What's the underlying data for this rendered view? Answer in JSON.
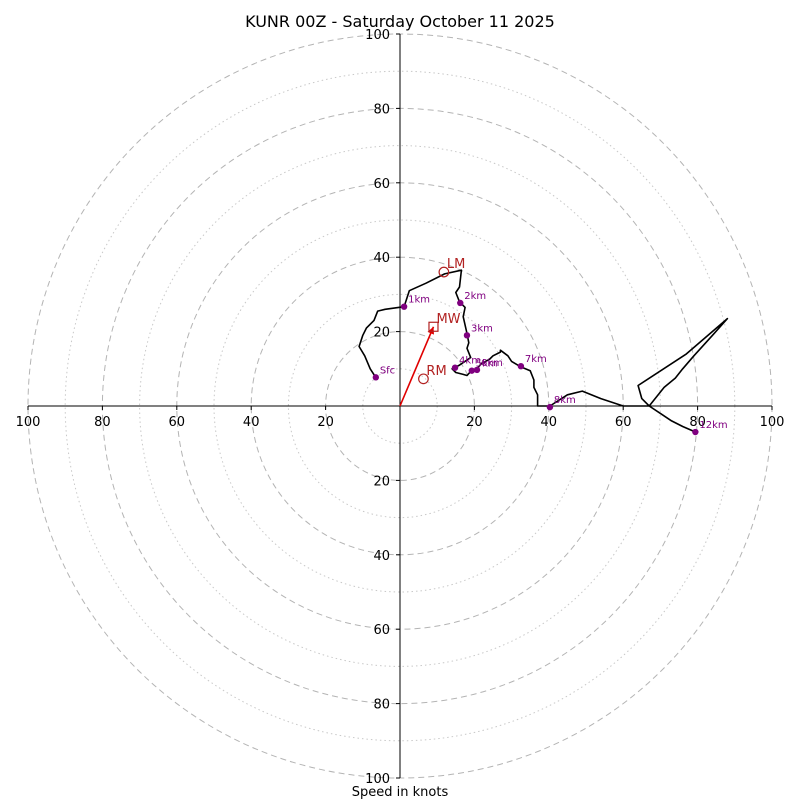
{
  "chart_data": {
    "type": "hodograph",
    "title": "KUNR 00Z - Saturday October 11 2025",
    "xlabel": "Speed in knots",
    "xlim": [
      -100,
      100
    ],
    "ylim": [
      -100,
      100
    ],
    "rings_dashed": [
      20,
      40,
      60,
      80,
      100
    ],
    "rings_dotted": [
      10,
      30,
      50,
      70,
      90
    ],
    "x_tick_labels": [
      {
        "v": -100,
        "label": "100"
      },
      {
        "v": -80,
        "label": "80"
      },
      {
        "v": -60,
        "label": "60"
      },
      {
        "v": -40,
        "label": "40"
      },
      {
        "v": -20,
        "label": "20"
      },
      {
        "v": 20,
        "label": "20"
      },
      {
        "v": 40,
        "label": "40"
      },
      {
        "v": 60,
        "label": "60"
      },
      {
        "v": 80,
        "label": "80"
      },
      {
        "v": 100,
        "label": "100"
      }
    ],
    "y_tick_labels": [
      {
        "v": 100,
        "label": "100"
      },
      {
        "v": 80,
        "label": "80"
      },
      {
        "v": 60,
        "label": "60"
      },
      {
        "v": 40,
        "label": "40"
      },
      {
        "v": 20,
        "label": "20"
      },
      {
        "v": -20,
        "label": "20"
      },
      {
        "v": -40,
        "label": "40"
      },
      {
        "v": -60,
        "label": "60"
      },
      {
        "v": -80,
        "label": "80"
      },
      {
        "v": -100,
        "label": "100"
      }
    ],
    "trace": [
      [
        -6.5,
        7.7
      ],
      [
        -8,
        10
      ],
      [
        -9.5,
        13.5
      ],
      [
        -11,
        16
      ],
      [
        -10,
        19
      ],
      [
        -9,
        21
      ],
      [
        -7,
        23
      ],
      [
        -6,
        25.5
      ],
      [
        -4,
        26
      ],
      [
        1.1,
        26.7
      ],
      [
        2.5,
        31
      ],
      [
        7,
        33
      ],
      [
        12,
        35.5
      ],
      [
        16.5,
        36.5
      ],
      [
        16,
        32
      ],
      [
        15,
        30.5
      ],
      [
        16,
        28
      ],
      [
        17.5,
        26.5
      ],
      [
        17,
        24
      ],
      [
        18,
        19.5
      ],
      [
        18.5,
        17
      ],
      [
        18,
        15.5
      ],
      [
        19,
        13
      ],
      [
        16,
        11
      ],
      [
        14,
        10
      ],
      [
        15,
        9
      ],
      [
        17,
        8.5
      ],
      [
        18,
        8.2
      ],
      [
        19.2,
        9.5
      ],
      [
        20.5,
        9.8
      ],
      [
        22,
        11.5
      ],
      [
        24,
        12.5
      ],
      [
        25,
        13.5
      ],
      [
        27,
        14.5
      ],
      [
        27,
        15
      ],
      [
        29,
        13.5
      ],
      [
        30,
        12
      ],
      [
        32.5,
        10.5
      ],
      [
        35,
        9.5
      ],
      [
        36,
        7
      ],
      [
        36,
        5
      ],
      [
        37,
        3
      ],
      [
        37,
        1
      ],
      [
        37,
        0
      ],
      [
        40.3,
        0
      ],
      [
        45,
        3
      ],
      [
        49,
        4
      ],
      [
        54,
        2
      ],
      [
        60,
        0
      ],
      [
        67,
        0
      ],
      [
        65,
        2
      ],
      [
        64,
        5.5
      ],
      [
        77,
        14
      ],
      [
        88,
        23.5
      ],
      [
        84,
        19
      ],
      [
        79,
        13.5
      ],
      [
        76,
        10
      ],
      [
        74,
        7.5
      ],
      [
        71,
        5
      ],
      [
        67,
        0
      ],
      [
        70,
        -2
      ],
      [
        73,
        -4
      ],
      [
        76,
        -5.5
      ],
      [
        79.4,
        -7
      ]
    ],
    "height_points": [
      {
        "label": "Sfc",
        "u": -6.5,
        "v": 7.7
      },
      {
        "label": "1km",
        "u": 1.1,
        "v": 26.7
      },
      {
        "label": "2km",
        "u": 16.2,
        "v": 27.7
      },
      {
        "label": "3km",
        "u": 18,
        "v": 19
      },
      {
        "label": "4km",
        "u": 14.8,
        "v": 10.3
      },
      {
        "label": "5km",
        "u": 19.3,
        "v": 9.5
      },
      {
        "label": "6km",
        "u": 20.7,
        "v": 9.7
      },
      {
        "label": "7km",
        "u": 32.5,
        "v": 10.7
      },
      {
        "label": "8km",
        "u": 40.3,
        "v": -0.3
      },
      {
        "label": "12km",
        "u": 79.4,
        "v": -7
      }
    ],
    "motion_vector": {
      "u0": 0,
      "v0": 0,
      "u1": 9,
      "v1": 21.3
    },
    "storm_motions": [
      {
        "label": "LM",
        "u": 11.8,
        "v": 36,
        "marker": "circle"
      },
      {
        "label": "MW",
        "u": 9,
        "v": 21.3,
        "marker": "square"
      },
      {
        "label": "RM",
        "u": 6.3,
        "v": 7.3,
        "marker": "circle"
      }
    ]
  }
}
